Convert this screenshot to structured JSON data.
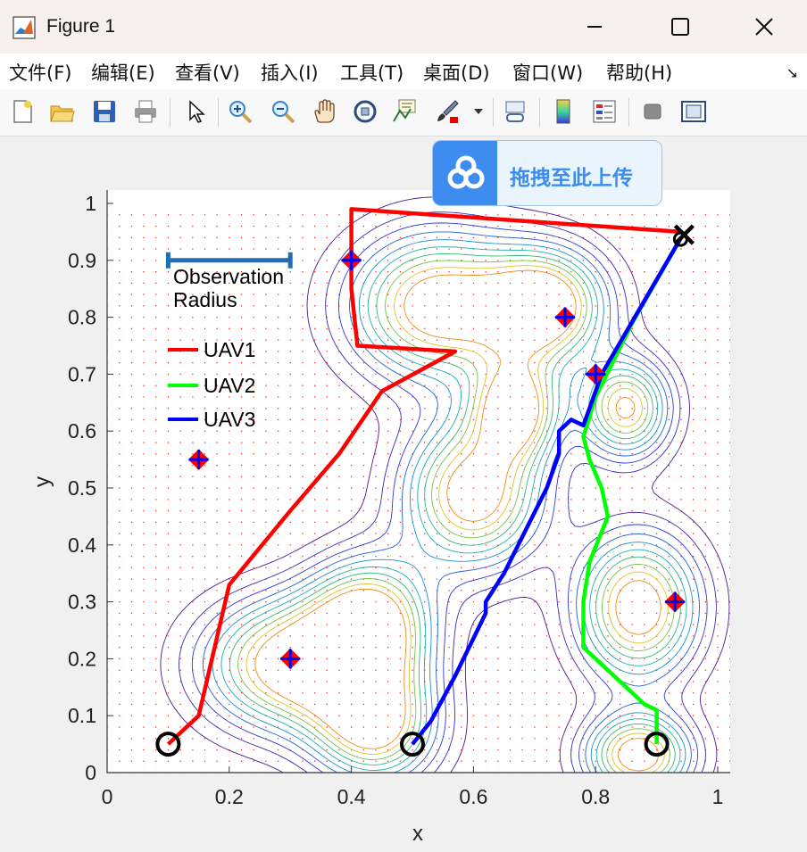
{
  "window": {
    "title": "Figure 1"
  },
  "menu": [
    "文件(F)",
    "编辑(E)",
    "查看(V)",
    "插入(I)",
    "工具(T)",
    "桌面(D)",
    "窗口(W)",
    "帮助(H)"
  ],
  "toolbar_icons": [
    "new-figure-icon",
    "open-file-icon",
    "save-icon",
    "print-icon",
    "pointer-icon",
    "zoom-in-icon",
    "zoom-out-icon",
    "pan-hand-icon",
    "rotate-3d-icon",
    "data-cursor-icon",
    "brush-icon",
    "link-plot-icon",
    "colorbar-icon",
    "legend-icon",
    "hide-plot-tools-icon",
    "show-plot-tools-icon"
  ],
  "upload_overlay": {
    "label": "拖拽至此上传"
  },
  "chart_data": {
    "type": "line",
    "xlabel": "x",
    "ylabel": "y",
    "xlim": [
      0,
      1
    ],
    "ylim": [
      0,
      1
    ],
    "xticks": [
      "0",
      "0.2",
      "0.4",
      "0.6",
      "0.8",
      "1"
    ],
    "yticks": [
      "0",
      "0.1",
      "0.2",
      "0.3",
      "0.4",
      "0.5",
      "0.6",
      "0.7",
      "0.8",
      "0.9",
      "1"
    ],
    "radius_label": [
      "Observation",
      "Radius"
    ],
    "observation_radius": 0.2,
    "series": [
      {
        "name": "UAV1",
        "color": "#ff0000",
        "x": [
          0.1,
          0.13,
          0.15,
          0.2,
          0.3,
          0.38,
          0.45,
          0.57,
          0.41,
          0.4,
          0.4,
          0.94
        ],
        "y": [
          0.05,
          0.08,
          0.1,
          0.33,
          0.46,
          0.56,
          0.67,
          0.74,
          0.75,
          0.85,
          0.99,
          0.95
        ]
      },
      {
        "name": "UAV2",
        "color": "#00ff00",
        "x": [
          0.9,
          0.9,
          0.88,
          0.78,
          0.78,
          0.79,
          0.82,
          0.81,
          0.79,
          0.78,
          0.8,
          0.86,
          0.94
        ],
        "y": [
          0.05,
          0.11,
          0.12,
          0.22,
          0.3,
          0.37,
          0.45,
          0.5,
          0.55,
          0.59,
          0.66,
          0.79,
          0.94
        ]
      },
      {
        "name": "UAV3",
        "color": "#0000ff",
        "x": [
          0.5,
          0.53,
          0.57,
          0.62,
          0.62,
          0.65,
          0.72,
          0.74,
          0.74,
          0.76,
          0.78,
          0.79,
          0.81,
          0.94
        ],
        "y": [
          0.05,
          0.09,
          0.17,
          0.28,
          0.3,
          0.35,
          0.5,
          0.56,
          0.6,
          0.62,
          0.61,
          0.64,
          0.7,
          0.94
        ]
      }
    ],
    "start_points": [
      [
        0.1,
        0.05
      ],
      [
        0.5,
        0.05
      ],
      [
        0.9,
        0.05
      ]
    ],
    "end_point": [
      0.945,
      0.945
    ],
    "targets": [
      [
        0.15,
        0.55
      ],
      [
        0.4,
        0.9
      ],
      [
        0.75,
        0.8
      ],
      [
        0.8,
        0.7
      ],
      [
        0.3,
        0.2
      ],
      [
        0.93,
        0.3
      ]
    ],
    "contour_peaks": [
      {
        "x": 0.54,
        "y": 0.82,
        "sx": 0.1,
        "sy": 0.09,
        "a": 1.0
      },
      {
        "x": 0.72,
        "y": 0.82,
        "sx": 0.07,
        "sy": 0.07,
        "a": 1.0
      },
      {
        "x": 0.67,
        "y": 0.64,
        "sx": 0.05,
        "sy": 0.06,
        "a": 0.9
      },
      {
        "x": 0.85,
        "y": 0.64,
        "sx": 0.05,
        "sy": 0.06,
        "a": 0.9
      },
      {
        "x": 0.6,
        "y": 0.49,
        "sx": 0.08,
        "sy": 0.09,
        "a": 1.0
      },
      {
        "x": 0.43,
        "y": 0.26,
        "sx": 0.07,
        "sy": 0.08,
        "a": 1.0
      },
      {
        "x": 0.3,
        "y": 0.19,
        "sx": 0.1,
        "sy": 0.08,
        "a": 1.0
      },
      {
        "x": 0.44,
        "y": 0.08,
        "sx": 0.07,
        "sy": 0.07,
        "a": 0.9
      },
      {
        "x": 0.87,
        "y": 0.29,
        "sx": 0.07,
        "sy": 0.09,
        "a": 1.0
      },
      {
        "x": 0.87,
        "y": 0.03,
        "sx": 0.06,
        "sy": 0.05,
        "a": 1.0
      }
    ]
  }
}
